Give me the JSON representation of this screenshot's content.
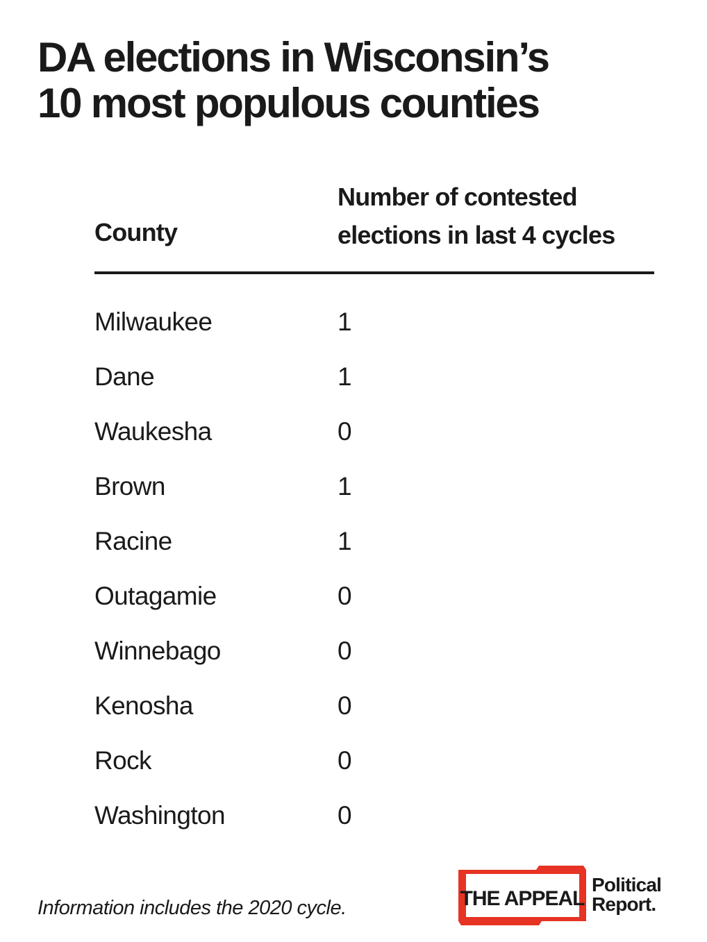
{
  "title_line1": "DA elections in Wisconsin’s",
  "title_line2": "10 most populous counties",
  "chart_data": {
    "type": "table",
    "columns": [
      "County",
      "Number of contested elections in last 4 cycles"
    ],
    "header_county": "County",
    "header_value_line1": "Number of contested",
    "header_value_line2": "elections in last 4 cycles",
    "rows": [
      {
        "county": "Milwaukee",
        "value": 1
      },
      {
        "county": "Dane",
        "value": 1
      },
      {
        "county": "Waukesha",
        "value": 0
      },
      {
        "county": "Brown",
        "value": 1
      },
      {
        "county": "Racine",
        "value": 1
      },
      {
        "county": "Outagamie",
        "value": 0
      },
      {
        "county": "Winnebago",
        "value": 0
      },
      {
        "county": "Kenosha",
        "value": 0
      },
      {
        "county": "Rock",
        "value": 0
      },
      {
        "county": "Washington",
        "value": 0
      }
    ]
  },
  "footnote": "Information includes the 2020 cycle.",
  "logo": {
    "brand": "THE APPEAL",
    "sub_line1": "Political",
    "sub_line2": "Report."
  },
  "colors": {
    "text": "#1a1a1a",
    "brand_red": "#e63323"
  }
}
